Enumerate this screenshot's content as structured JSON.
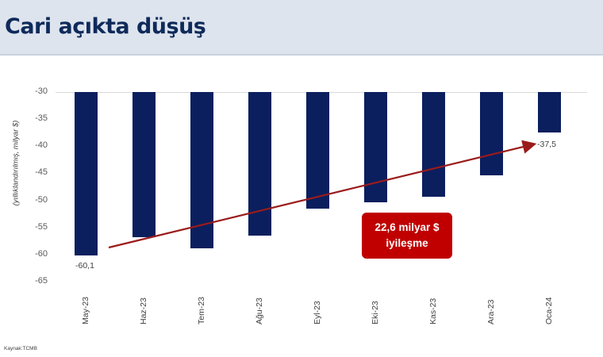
{
  "header": {
    "title": "Cari açıkta düşüş"
  },
  "chart": {
    "y_axis_label": "(yıllıklandırılmış, milyar $)",
    "y_ticks": [
      "-30",
      "-35",
      "-40",
      "-45",
      "-50",
      "-55",
      "-60",
      "-65"
    ],
    "x_labels": [
      "May-23",
      "Haz-23",
      "Tem-23",
      "Ağu-23",
      "Eyl-23",
      "Eki-23",
      "Kas-23",
      "Ara-23",
      "Oca-24"
    ],
    "first_value_label": "-60,1",
    "last_value_label": "-37,5",
    "callout_line1": "22,6 milyar $",
    "callout_line2": "iyileşme",
    "bar_color": "#0b1f5e",
    "trend_color": "#9b1b1b",
    "callout_color": "#c00000"
  },
  "footer": {
    "source": "Kaynak:TCMB"
  },
  "chart_data": {
    "type": "bar",
    "title": "Cari açıkta düşüş",
    "xlabel": "",
    "ylabel": "(yıllıklandırılmış, milyar $)",
    "categories": [
      "May-23",
      "Haz-23",
      "Tem-23",
      "Ağu-23",
      "Eyl-23",
      "Eki-23",
      "Kas-23",
      "Ara-23",
      "Oca-24"
    ],
    "values": [
      -60.1,
      -56.8,
      -58.8,
      -56.5,
      -51.5,
      -50.4,
      -49.3,
      -45.4,
      -37.5
    ],
    "ylim": [
      -65,
      -30
    ],
    "y_axis_inverted_baseline": -30,
    "data_labels": {
      "May-23": "-60,1",
      "Oca-24": "-37,5"
    },
    "annotations": [
      "Trend arrow from May-23 to Oca-24",
      "22,6 milyar $ iyileşme"
    ],
    "grid": false,
    "legend": null,
    "source": "Kaynak:TCMB"
  }
}
